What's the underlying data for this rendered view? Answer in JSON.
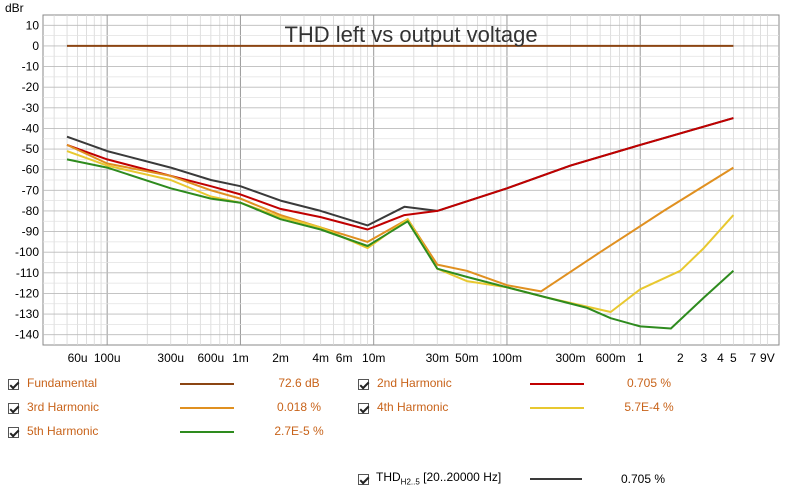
{
  "chart_data": {
    "type": "line",
    "title": "THD left vs output voltage",
    "ylabel": "dBr",
    "x_unit": "V",
    "xscale": "log",
    "xlim": [
      3.3e-05,
      11
    ],
    "ylim": [
      -145,
      15
    ],
    "grid": true,
    "y_ticks": [
      10,
      0,
      -10,
      -20,
      -30,
      -40,
      -50,
      -60,
      -70,
      -80,
      -90,
      -100,
      -110,
      -120,
      -130,
      -140
    ],
    "y_tick_labels": [
      "10",
      "0",
      "-10",
      "-20",
      "-30",
      "-40",
      "-50",
      "-60",
      "-70",
      "-80",
      "-90",
      "-100",
      "-110",
      "-120",
      "-130",
      "-140"
    ],
    "x_ticks": [
      {
        "v": 6e-05,
        "label": "60u"
      },
      {
        "v": 0.0001,
        "label": "100u"
      },
      {
        "v": 0.0003,
        "label": "300u"
      },
      {
        "v": 0.0006,
        "label": "600u"
      },
      {
        "v": 0.001,
        "label": "1m"
      },
      {
        "v": 0.002,
        "label": "2m"
      },
      {
        "v": 0.004,
        "label": "4m"
      },
      {
        "v": 0.006,
        "label": "6m"
      },
      {
        "v": 0.01,
        "label": "10m"
      },
      {
        "v": 0.03,
        "label": "30m"
      },
      {
        "v": 0.05,
        "label": "50m"
      },
      {
        "v": 0.1,
        "label": "100m"
      },
      {
        "v": 0.3,
        "label": "300m"
      },
      {
        "v": 0.6,
        "label": "600m"
      },
      {
        "v": 1,
        "label": "1"
      },
      {
        "v": 2,
        "label": "2"
      },
      {
        "v": 3,
        "label": "3"
      },
      {
        "v": 4,
        "label": "4"
      },
      {
        "v": 5,
        "label": "5"
      },
      {
        "v": 7,
        "label": "7"
      },
      {
        "v": 9,
        "label": "9V"
      }
    ],
    "series": [
      {
        "name": "Fundamental",
        "color": "#8b4513",
        "x": [
          5e-05,
          5
        ],
        "y": [
          0,
          0
        ]
      },
      {
        "name": "THD",
        "color": "#3a3a3a",
        "x": [
          5e-05,
          0.0001,
          0.0003,
          0.0006,
          0.001,
          0.002,
          0.004,
          0.009,
          0.017,
          0.03,
          0.1,
          0.3,
          1,
          5
        ],
        "y": [
          -44,
          -51,
          -59,
          -65,
          -68,
          -75,
          -80,
          -87,
          -78,
          -80,
          -69,
          -58,
          -48,
          -35
        ]
      },
      {
        "name": "2nd Harmonic",
        "color": "#c00000",
        "x": [
          5e-05,
          0.0001,
          0.0003,
          0.0006,
          0.001,
          0.002,
          0.004,
          0.009,
          0.017,
          0.03,
          0.1,
          0.3,
          1,
          5
        ],
        "y": [
          -48,
          -55,
          -63,
          -68,
          -72,
          -79,
          -83,
          -89,
          -82,
          -80,
          -69,
          -58,
          -48,
          -35
        ]
      },
      {
        "name": "3rd Harmonic",
        "color": "#e09020",
        "x": [
          5e-05,
          0.0001,
          0.0003,
          0.0006,
          0.001,
          0.002,
          0.004,
          0.009,
          0.018,
          0.03,
          0.05,
          0.1,
          0.18,
          0.5,
          1.5,
          5
        ],
        "y": [
          -48,
          -57,
          -63,
          -70,
          -74,
          -82,
          -88,
          -95,
          -84,
          -106,
          -109,
          -116,
          -119,
          -100,
          -80,
          -59
        ]
      },
      {
        "name": "4th Harmonic",
        "color": "#e8c830",
        "x": [
          5e-05,
          0.0001,
          0.0003,
          0.0006,
          0.001,
          0.002,
          0.004,
          0.009,
          0.018,
          0.03,
          0.05,
          0.1,
          0.2,
          0.6,
          1,
          2,
          3,
          5
        ],
        "y": [
          -51,
          -58,
          -65,
          -73,
          -76,
          -83,
          -88,
          -98,
          -84,
          -108,
          -114,
          -117,
          -122,
          -129,
          -118,
          -109,
          -98,
          -82
        ]
      },
      {
        "name": "5th Harmonic",
        "color": "#2e8b1e",
        "x": [
          5e-05,
          0.0001,
          0.0003,
          0.0006,
          0.001,
          0.002,
          0.004,
          0.009,
          0.018,
          0.03,
          0.05,
          0.1,
          0.2,
          0.4,
          0.6,
          1,
          1.7,
          3,
          5
        ],
        "y": [
          -55,
          -59,
          -69,
          -74,
          -76,
          -84,
          -89,
          -97,
          -85,
          -108,
          -112,
          -117,
          -122,
          -127,
          -132,
          -136,
          -137,
          -122,
          -109
        ]
      }
    ]
  },
  "legend": [
    {
      "name": "Fundamental",
      "color": "#8b4513",
      "value": "72.6 dB"
    },
    {
      "name": "2nd Harmonic",
      "color": "#c00000",
      "value": "0.705 %"
    },
    {
      "name": "3rd Harmonic",
      "color": "#e09020",
      "value": "0.018 %"
    },
    {
      "name": "4th Harmonic",
      "color": "#e8c830",
      "value": "5.7E-4 %"
    },
    {
      "name": "5th Harmonic",
      "color": "#2e8b1e",
      "value": "2.7E-5 %"
    }
  ],
  "thd_legend": {
    "name": "THD",
    "sub": "H2..5",
    "range": "[20..20000 Hz]",
    "color": "#3a3a3a",
    "value": "0.705 %"
  }
}
